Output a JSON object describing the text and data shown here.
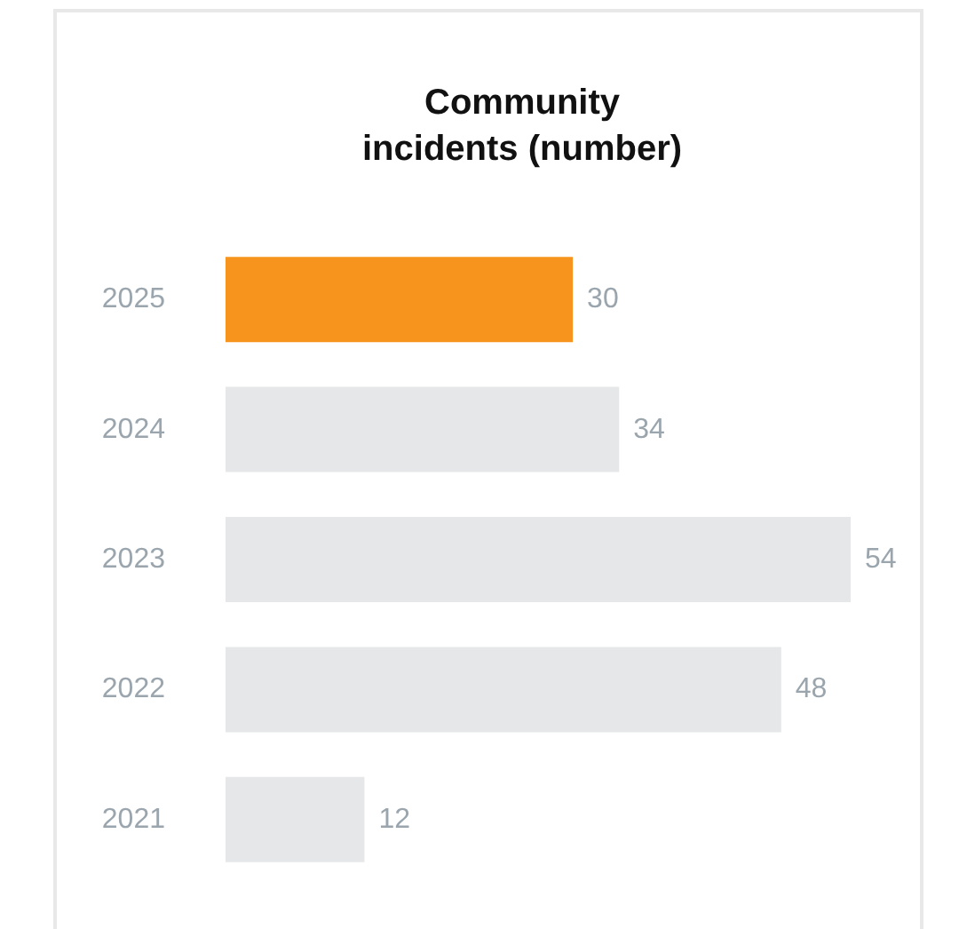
{
  "chart_data": {
    "type": "bar",
    "title": "Community\nincidents (number)",
    "orientation": "horizontal",
    "categories": [
      "2025",
      "2024",
      "2023",
      "2022",
      "2021"
    ],
    "values": [
      30,
      34,
      54,
      48,
      12
    ],
    "colors": [
      "#f7941d",
      "#e6e7e8",
      "#e6e7e8",
      "#e6e7e8",
      "#e6e7e8"
    ],
    "data_labels": true
  }
}
